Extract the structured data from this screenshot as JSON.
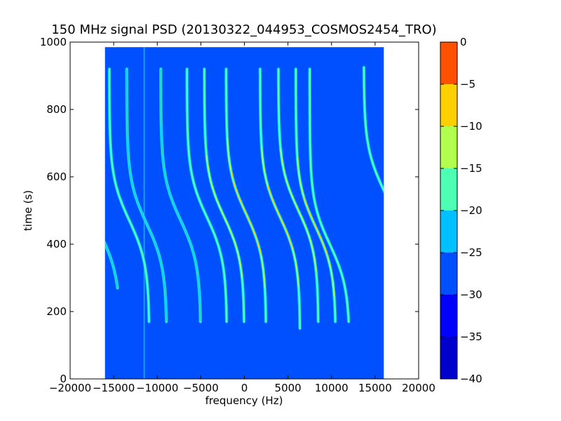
{
  "chart_data": {
    "type": "heatmap",
    "title": "150 MHz signal PSD (20130322_044953_COSMOS2454_TRO)",
    "xlabel": "frequency (Hz)",
    "ylabel": "time (s)",
    "xlim": [
      -20000,
      20000
    ],
    "ylim": [
      0,
      1000
    ],
    "xticks": [
      -20000,
      -15000,
      -10000,
      -5000,
      0,
      5000,
      10000,
      15000,
      20000
    ],
    "xtick_labels": [
      "−20000",
      "−15000",
      "−10000",
      "−5000",
      "0",
      "5000",
      "10000",
      "15000",
      "20000"
    ],
    "yticks": [
      0,
      200,
      400,
      600,
      800,
      1000
    ],
    "ytick_labels": [
      "0",
      "200",
      "400",
      "600",
      "800",
      "1000"
    ],
    "data_extent": {
      "x": [
        -16000,
        16000
      ],
      "y": [
        0,
        985
      ]
    },
    "background_level": -27.5,
    "colorbar": {
      "levels": [
        -40,
        -35,
        -30,
        -25,
        -20,
        -15,
        -10,
        -5,
        0
      ],
      "tick_labels": [
        "−40",
        "−35",
        "−30",
        "−25",
        "−20",
        "−15",
        "−10",
        "−5",
        "0"
      ],
      "colors": [
        "#0000cc",
        "#0000ff",
        "#0050ff",
        "#00c0ff",
        "#4dffb3",
        "#b3ff4d",
        "#ffd000",
        "#ff5000",
        "#cc0000"
      ]
    },
    "traces": [
      {
        "center_x": -13200,
        "center_t": 470,
        "width": 4600,
        "span": [
          170,
          920
        ],
        "peak": -17
      },
      {
        "center_x": -16500,
        "center_t": 430,
        "width": 4600,
        "span": [
          270,
          920
        ],
        "peak": -21
      },
      {
        "center_x": -11200,
        "center_t": 460,
        "width": 4600,
        "span": [
          170,
          920
        ],
        "peak": -21
      },
      {
        "center_x": -7300,
        "center_t": 470,
        "width": 4600,
        "span": [
          170,
          920
        ],
        "peak": -21
      },
      {
        "center_x": -2300,
        "center_t": 480,
        "width": 4600,
        "span": [
          170,
          920
        ],
        "peak": -10
      },
      {
        "center_x": -4300,
        "center_t": 480,
        "width": 4600,
        "span": [
          170,
          920
        ],
        "peak": -19
      },
      {
        "center_x": 200,
        "center_t": 490,
        "width": 4600,
        "span": [
          170,
          920
        ],
        "peak": -6
      },
      {
        "center_x": 4100,
        "center_t": 480,
        "width": 4600,
        "span": [
          150,
          920
        ],
        "peak": -8
      },
      {
        "center_x": 6200,
        "center_t": 500,
        "width": 4600,
        "span": [
          170,
          920
        ],
        "peak": -10
      },
      {
        "center_x": 8200,
        "center_t": 450,
        "width": 4600,
        "span": [
          170,
          920
        ],
        "peak": -8
      },
      {
        "center_x": 9800,
        "center_t": 400,
        "width": 4600,
        "span": [
          170,
          920
        ],
        "peak": -16
      },
      {
        "center_x": 16000,
        "center_t": 560,
        "width": 4600,
        "span": [
          170,
          925
        ],
        "peak": -19
      }
    ],
    "vertical_lines": [
      {
        "x": -11500,
        "level": -22
      }
    ]
  }
}
